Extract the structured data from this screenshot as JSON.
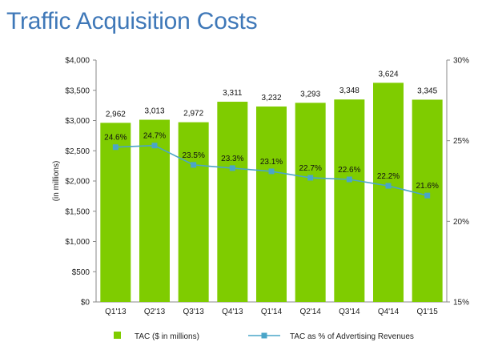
{
  "page": {
    "title": "Traffic Acquisition Costs"
  },
  "chart_data": {
    "type": "bar",
    "categories": [
      "Q1'13",
      "Q2'13",
      "Q3'13",
      "Q4'13",
      "Q1'14",
      "Q2'14",
      "Q3'14",
      "Q4'14",
      "Q1'15"
    ],
    "ylabel": "(in millions)",
    "ylim": [
      0,
      4000
    ],
    "y2lim": [
      15,
      30
    ],
    "left_ticks": [
      "$0",
      "$500",
      "$1,000",
      "$1,500",
      "$2,000",
      "$2,500",
      "$3,000",
      "$3,500",
      "$4,000"
    ],
    "left_tick_values": [
      0,
      500,
      1000,
      1500,
      2000,
      2500,
      3000,
      3500,
      4000
    ],
    "right_ticks": [
      "15%",
      "20%",
      "25%",
      "30%"
    ],
    "right_tick_values": [
      15,
      20,
      25,
      30
    ],
    "series": [
      {
        "name": "TAC ($ in millions)",
        "type": "bar",
        "axis": "left",
        "values": [
          2962,
          3013,
          2972,
          3311,
          3232,
          3293,
          3348,
          3624,
          3345
        ],
        "labels": [
          "2,962",
          "3,013",
          "2,972",
          "3,311",
          "3,232",
          "3,293",
          "3,348",
          "3,624",
          "3,345"
        ],
        "color": "#7fcc00"
      },
      {
        "name": "TAC as % of Advertising Revenues",
        "type": "line",
        "axis": "right",
        "values": [
          24.6,
          24.7,
          23.5,
          23.3,
          23.1,
          22.7,
          22.6,
          22.2,
          21.6
        ],
        "labels": [
          "24.6%",
          "24.7%",
          "23.5%",
          "23.3%",
          "23.1%",
          "22.7%",
          "22.6%",
          "22.2%",
          "21.6%"
        ],
        "color": "#4aa5c8"
      }
    ],
    "grid": false,
    "legend": "bottom"
  }
}
